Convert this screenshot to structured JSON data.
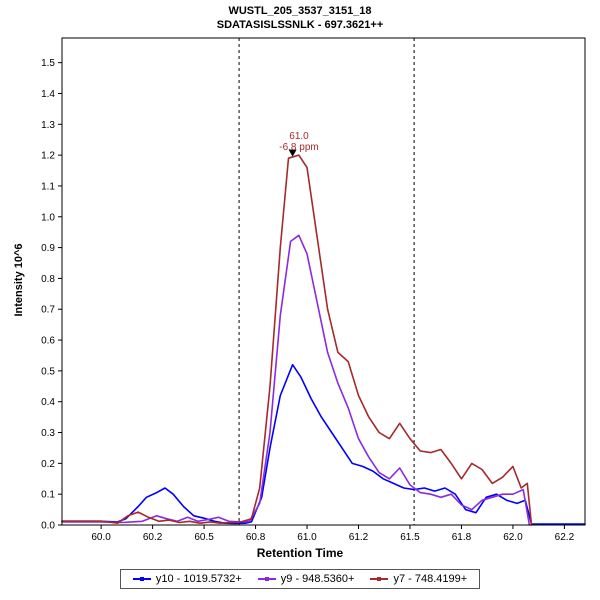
{
  "title": {
    "line1": "WUSTL_205_3537_3151_18",
    "line2": "SDATASISLSSNLK - 697.3621++"
  },
  "axes": {
    "x_label": "Retention Time",
    "y_label": "Intensity 10^6"
  },
  "annotation": {
    "rt": "61.0",
    "ppm": "-6.8 ppm",
    "color": "#A52A2A"
  },
  "legend": {
    "items": [
      {
        "label": "y10 - 1019.5732+",
        "color": "#0000FF"
      },
      {
        "label": "y9 - 948.5360+",
        "color": "#8A2BE2"
      },
      {
        "label": "y7 - 748.4199+",
        "color": "#A52A2A"
      }
    ]
  },
  "chart_data": {
    "type": "line",
    "title": "WUSTL_205_3537_3151_18",
    "subtitle": "SDATASISLSSNLK - 697.3621++",
    "xlabel": "Retention Time",
    "ylabel": "Intensity 10^6",
    "xlim": [
      59.81,
      62.35
    ],
    "ylim": [
      0,
      1.58
    ],
    "grid": false,
    "legend_position": "bottom",
    "x_ticks": {
      "values": [
        60.0,
        60.25,
        60.5,
        60.75,
        61.0,
        61.25,
        61.5,
        61.75,
        62.0,
        62.25
      ],
      "labels": [
        "60.0",
        "60.2",
        "60.5",
        "60.8",
        "61.0",
        "61.2",
        "61.5",
        "61.8",
        "62.0",
        "62.2"
      ]
    },
    "y_ticks": {
      "values": [
        0.0,
        0.1,
        0.2,
        0.3,
        0.4,
        0.5,
        0.6,
        0.7,
        0.8,
        0.9,
        1.0,
        1.1,
        1.2,
        1.3,
        1.4,
        1.5
      ],
      "labels": [
        "0.0",
        "0.1",
        "0.2",
        "0.3",
        "0.4",
        "0.5",
        "0.6",
        "0.7",
        "0.8",
        "0.9",
        "1.0",
        "1.1",
        "1.2",
        "1.3",
        "1.4",
        "1.5"
      ]
    },
    "integration_boundaries": [
      60.67,
      61.52
    ],
    "apex": {
      "x": 60.93,
      "y": 1.205,
      "rt_label": "61.0",
      "mass_error": "-6.8 ppm"
    },
    "series": [
      {
        "name": "y10 - 1019.5732+",
        "color": "#0000FF",
        "points": [
          [
            59.81,
            0.012
          ],
          [
            60.0,
            0.012
          ],
          [
            60.08,
            0.01
          ],
          [
            60.12,
            0.02
          ],
          [
            60.18,
            0.06
          ],
          [
            60.22,
            0.09
          ],
          [
            60.27,
            0.105
          ],
          [
            60.31,
            0.12
          ],
          [
            60.35,
            0.1
          ],
          [
            60.4,
            0.06
          ],
          [
            60.45,
            0.03
          ],
          [
            60.5,
            0.022
          ],
          [
            60.55,
            0.012
          ],
          [
            60.6,
            0.006
          ],
          [
            60.65,
            0.005
          ],
          [
            60.7,
            0.006
          ],
          [
            60.73,
            0.01
          ],
          [
            60.78,
            0.09
          ],
          [
            60.82,
            0.25
          ],
          [
            60.87,
            0.42
          ],
          [
            60.93,
            0.52
          ],
          [
            60.97,
            0.48
          ],
          [
            61.02,
            0.41
          ],
          [
            61.07,
            0.35
          ],
          [
            61.12,
            0.3
          ],
          [
            61.17,
            0.25
          ],
          [
            61.22,
            0.2
          ],
          [
            61.27,
            0.19
          ],
          [
            61.32,
            0.175
          ],
          [
            61.37,
            0.15
          ],
          [
            61.42,
            0.135
          ],
          [
            61.47,
            0.12
          ],
          [
            61.52,
            0.115
          ],
          [
            61.57,
            0.12
          ],
          [
            61.62,
            0.11
          ],
          [
            61.67,
            0.12
          ],
          [
            61.72,
            0.1
          ],
          [
            61.77,
            0.05
          ],
          [
            61.82,
            0.04
          ],
          [
            61.87,
            0.09
          ],
          [
            61.92,
            0.1
          ],
          [
            61.97,
            0.08
          ],
          [
            62.02,
            0.07
          ],
          [
            62.06,
            0.08
          ],
          [
            62.09,
            0.003
          ],
          [
            62.35,
            0.003
          ]
        ]
      },
      {
        "name": "y9 - 948.5360+",
        "color": "#8A2BE2",
        "points": [
          [
            59.81,
            0.01
          ],
          [
            60.0,
            0.01
          ],
          [
            60.1,
            0.008
          ],
          [
            60.2,
            0.012
          ],
          [
            60.27,
            0.03
          ],
          [
            60.32,
            0.02
          ],
          [
            60.37,
            0.012
          ],
          [
            60.42,
            0.025
          ],
          [
            60.47,
            0.012
          ],
          [
            60.52,
            0.018
          ],
          [
            60.57,
            0.025
          ],
          [
            60.62,
            0.012
          ],
          [
            60.67,
            0.01
          ],
          [
            60.72,
            0.012
          ],
          [
            60.77,
            0.07
          ],
          [
            60.82,
            0.3
          ],
          [
            60.87,
            0.68
          ],
          [
            60.92,
            0.92
          ],
          [
            60.96,
            0.94
          ],
          [
            61.0,
            0.88
          ],
          [
            61.05,
            0.72
          ],
          [
            61.1,
            0.56
          ],
          [
            61.15,
            0.46
          ],
          [
            61.2,
            0.38
          ],
          [
            61.25,
            0.28
          ],
          [
            61.3,
            0.22
          ],
          [
            61.35,
            0.17
          ],
          [
            61.4,
            0.15
          ],
          [
            61.45,
            0.185
          ],
          [
            61.5,
            0.13
          ],
          [
            61.55,
            0.105
          ],
          [
            61.6,
            0.1
          ],
          [
            61.65,
            0.09
          ],
          [
            61.7,
            0.1
          ],
          [
            61.75,
            0.065
          ],
          [
            61.8,
            0.05
          ],
          [
            61.85,
            0.08
          ],
          [
            61.9,
            0.09
          ],
          [
            61.95,
            0.1
          ],
          [
            62.0,
            0.1
          ],
          [
            62.05,
            0.115
          ],
          [
            62.08,
            0.0
          ]
        ]
      },
      {
        "name": "y7 - 748.4199+",
        "color": "#A52A2A",
        "points": [
          [
            59.81,
            0.013
          ],
          [
            60.0,
            0.013
          ],
          [
            60.08,
            0.006
          ],
          [
            60.13,
            0.03
          ],
          [
            60.18,
            0.042
          ],
          [
            60.23,
            0.025
          ],
          [
            60.28,
            0.012
          ],
          [
            60.33,
            0.016
          ],
          [
            60.38,
            0.008
          ],
          [
            60.43,
            0.012
          ],
          [
            60.48,
            0.006
          ],
          [
            60.53,
            0.01
          ],
          [
            60.58,
            0.006
          ],
          [
            60.63,
            0.008
          ],
          [
            60.68,
            0.01
          ],
          [
            60.73,
            0.02
          ],
          [
            60.77,
            0.12
          ],
          [
            60.82,
            0.45
          ],
          [
            60.87,
            0.9
          ],
          [
            60.91,
            1.19
          ],
          [
            60.96,
            1.2
          ],
          [
            61.0,
            1.16
          ],
          [
            61.05,
            0.93
          ],
          [
            61.1,
            0.7
          ],
          [
            61.15,
            0.56
          ],
          [
            61.2,
            0.53
          ],
          [
            61.25,
            0.42
          ],
          [
            61.3,
            0.35
          ],
          [
            61.35,
            0.3
          ],
          [
            61.4,
            0.28
          ],
          [
            61.45,
            0.33
          ],
          [
            61.5,
            0.28
          ],
          [
            61.55,
            0.24
          ],
          [
            61.6,
            0.235
          ],
          [
            61.65,
            0.245
          ],
          [
            61.7,
            0.2
          ],
          [
            61.75,
            0.15
          ],
          [
            61.8,
            0.2
          ],
          [
            61.85,
            0.18
          ],
          [
            61.9,
            0.135
          ],
          [
            61.95,
            0.155
          ],
          [
            62.0,
            0.19
          ],
          [
            62.04,
            0.12
          ],
          [
            62.07,
            0.135
          ],
          [
            62.09,
            0.0
          ]
        ]
      }
    ]
  }
}
